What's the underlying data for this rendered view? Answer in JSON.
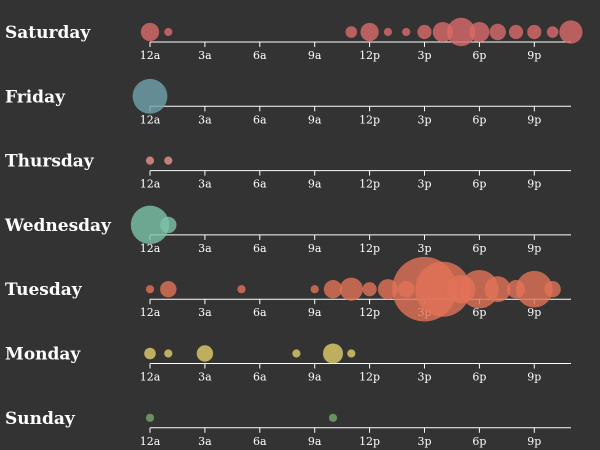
{
  "chart_data": {
    "type": "scatter",
    "hour_ticks": [
      "12a",
      "3a",
      "6a",
      "9a",
      "12p",
      "3p",
      "6p",
      "9p"
    ],
    "tick_hours": [
      0,
      3,
      6,
      9,
      12,
      15,
      18,
      21
    ],
    "x_range_hours": [
      0,
      23
    ],
    "size_encodes": "activity count",
    "rows": [
      {
        "day": "Saturday",
        "color": "#d96a6a",
        "values": [
          5,
          1,
          0,
          0,
          0,
          0,
          0,
          0,
          0,
          0,
          0,
          2,
          5,
          1,
          1,
          3,
          6,
          12,
          6,
          4,
          3,
          3,
          2,
          8
        ]
      },
      {
        "day": "Friday",
        "color": "#6fa3ad",
        "values": [
          18,
          0,
          0,
          0,
          0,
          0,
          0,
          0,
          0,
          0,
          0,
          0,
          0,
          0,
          0,
          0,
          0,
          0,
          0,
          0,
          0,
          0,
          0,
          0
        ]
      },
      {
        "day": "Thursday",
        "color": "#e8948a",
        "values": [
          1,
          1,
          0,
          0,
          0,
          0,
          0,
          0,
          0,
          0,
          0,
          0,
          0,
          0,
          0,
          0,
          0,
          0,
          0,
          0,
          0,
          0,
          0,
          0
        ]
      },
      {
        "day": "Wednesday",
        "color": "#7cc4aa",
        "values": [
          22,
          4,
          0,
          0,
          0,
          0,
          0,
          0,
          0,
          0,
          0,
          0,
          0,
          0,
          0,
          0,
          0,
          0,
          0,
          0,
          0,
          0,
          0,
          0
        ]
      },
      {
        "day": "Tuesday",
        "color": "#e27358",
        "values": [
          1,
          4,
          0,
          0,
          0,
          1,
          0,
          0,
          0,
          1,
          5,
          8,
          3,
          6,
          4,
          62,
          45,
          12,
          22,
          10,
          5,
          20,
          4,
          0
        ]
      },
      {
        "day": "Monday",
        "color": "#e0cd6c",
        "values": [
          2,
          1,
          0,
          4,
          0,
          0,
          0,
          0,
          1,
          0,
          6,
          1,
          0,
          0,
          0,
          0,
          0,
          0,
          0,
          0,
          0,
          0,
          0,
          0
        ]
      },
      {
        "day": "Sunday",
        "color": "#77a86c",
        "values": [
          1,
          0,
          0,
          0,
          0,
          0,
          0,
          0,
          0,
          0,
          1,
          0,
          0,
          0,
          0,
          0,
          0,
          0,
          0,
          0,
          0,
          0,
          0,
          0
        ]
      }
    ]
  }
}
